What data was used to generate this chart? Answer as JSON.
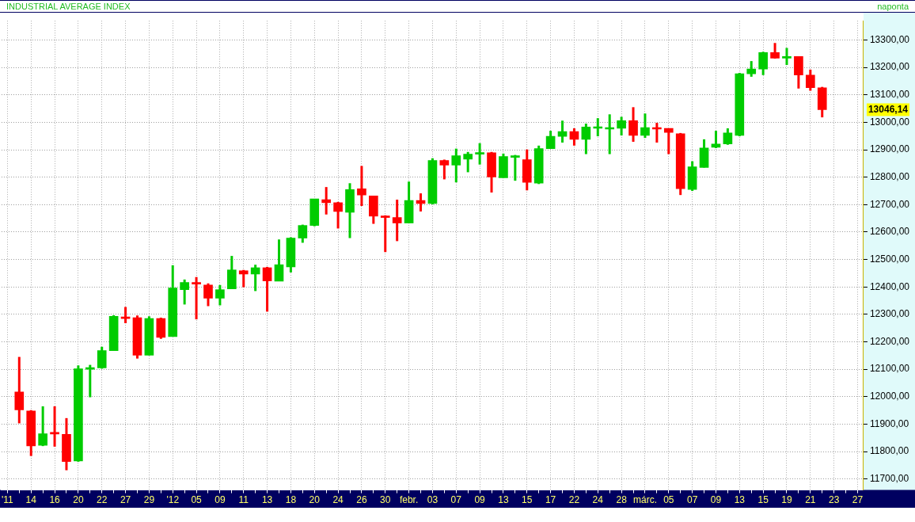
{
  "chart_data": {
    "type": "candlestick",
    "title": "INDUSTRIAL AVERAGE INDEX",
    "subtitle": "naponta",
    "categories": [
      "'11",
      null,
      "14",
      null,
      "16",
      null,
      "20",
      null,
      "22",
      null,
      "27",
      null,
      "29",
      null,
      "'12",
      null,
      "05",
      null,
      "09",
      null,
      "11",
      null,
      "13",
      null,
      "18",
      null,
      "20",
      null,
      "24",
      null,
      "26",
      null,
      "30",
      null,
      "febr.",
      null,
      "03",
      null,
      "07",
      null,
      "09",
      null,
      "13",
      null,
      "15",
      null,
      "17",
      null,
      "22",
      null,
      "24",
      null,
      "28",
      null,
      "márc.",
      null,
      "05",
      null,
      "07",
      null,
      "09",
      null,
      "13",
      null,
      "15",
      null,
      "19",
      null,
      "21",
      null,
      "23",
      null,
      "27"
    ],
    "ohlc": [
      null,
      [
        12017,
        12145,
        11903,
        11952
      ],
      [
        11948,
        11951,
        11784,
        11821
      ],
      [
        11823,
        11965,
        11820,
        11865
      ],
      [
        11868,
        11965,
        11818,
        11864
      ],
      [
        11863,
        11922,
        11732,
        11764
      ],
      [
        11766,
        12114,
        11763,
        12102
      ],
      [
        12100,
        12116,
        11998,
        12106
      ],
      [
        12105,
        12182,
        12102,
        12168
      ],
      [
        12168,
        12297,
        12168,
        12293
      ],
      [
        12291,
        12327,
        12268,
        12285
      ],
      [
        12288,
        12296,
        12139,
        12151
      ],
      [
        12151,
        12293,
        12151,
        12285
      ],
      [
        12285,
        12288,
        12211,
        12216
      ],
      [
        12219,
        12479,
        12219,
        12396
      ],
      [
        12390,
        12427,
        12336,
        12416
      ],
      [
        12416,
        12436,
        12282,
        12410
      ],
      [
        12407,
        12413,
        12330,
        12359
      ],
      [
        12359,
        12407,
        12333,
        12390
      ],
      [
        12393,
        12513,
        12393,
        12462
      ],
      [
        12459,
        12462,
        12399,
        12447
      ],
      [
        12447,
        12481,
        12385,
        12470
      ],
      [
        12470,
        12473,
        12310,
        12422
      ],
      [
        12421,
        12573,
        12421,
        12481
      ],
      [
        12473,
        12581,
        12453,
        12578
      ],
      [
        12578,
        12627,
        12561,
        12624
      ],
      [
        12624,
        12721,
        12621,
        12721
      ],
      [
        12718,
        12764,
        12664,
        12707
      ],
      [
        12707,
        12710,
        12613,
        12675
      ],
      [
        12672,
        12778,
        12578,
        12755
      ],
      [
        12758,
        12841,
        12695,
        12735
      ],
      [
        12732,
        12732,
        12630,
        12658
      ],
      [
        12658,
        12661,
        12527,
        12653
      ],
      [
        12653,
        12718,
        12567,
        12633
      ],
      [
        12633,
        12784,
        12633,
        12715
      ],
      [
        12715,
        12741,
        12675,
        12704
      ],
      [
        12704,
        12869,
        12701,
        12861
      ],
      [
        12861,
        12864,
        12792,
        12844
      ],
      [
        12844,
        12904,
        12781,
        12878
      ],
      [
        12866,
        12892,
        12818,
        12884
      ],
      [
        12884,
        12924,
        12846,
        12889
      ],
      [
        12889,
        12892,
        12744,
        12801
      ],
      [
        12798,
        12886,
        12798,
        12875
      ],
      [
        12872,
        12881,
        12787,
        12878
      ],
      [
        12864,
        12901,
        12752,
        12781
      ],
      [
        12778,
        12915,
        12775,
        12904
      ],
      [
        12904,
        12969,
        12904,
        12949
      ],
      [
        12949,
        13006,
        12926,
        12966
      ],
      [
        12966,
        12978,
        12915,
        12938
      ],
      [
        12938,
        12995,
        12884,
        12983
      ],
      [
        12978,
        13015,
        12949,
        12983
      ],
      [
        12975,
        13029,
        12884,
        12981
      ],
      [
        12978,
        13020,
        12952,
        13006
      ],
      [
        13006,
        13055,
        12929,
        12952
      ],
      [
        12952,
        13032,
        12943,
        12981
      ],
      [
        12981,
        12998,
        12926,
        12975
      ],
      [
        12978,
        12978,
        12884,
        12963
      ],
      [
        12958,
        12961,
        12735,
        12758
      ],
      [
        12755,
        12858,
        12750,
        12838
      ],
      [
        12835,
        12938,
        12835,
        12906
      ],
      [
        12909,
        12969,
        12906,
        12921
      ],
      [
        12921,
        12978,
        12918,
        12961
      ],
      [
        12952,
        13180,
        12949,
        13177
      ],
      [
        13177,
        13223,
        13166,
        13194
      ],
      [
        13194,
        13257,
        13172,
        13254
      ],
      [
        13254,
        13289,
        13232,
        13234
      ],
      [
        13234,
        13271,
        13209,
        13240
      ],
      [
        13240,
        13240,
        13123,
        13172
      ],
      [
        13172,
        13192,
        13115,
        13126
      ],
      [
        13126,
        13129,
        13018,
        13046.14
      ],
      null,
      null,
      null
    ],
    "colors": [
      null,
      "#ff0000",
      "#ff0000",
      "#00cc00",
      "#ff0000",
      "#ff0000",
      "#00cc00",
      "#00cc00",
      "#00cc00",
      "#00cc00",
      "#ff0000",
      "#ff0000",
      "#00cc00",
      "#ff0000",
      "#00cc00",
      "#00cc00",
      "#ff0000",
      "#ff0000",
      "#00cc00",
      "#00cc00",
      "#ff0000",
      "#00cc00",
      "#ff0000",
      "#00cc00",
      "#00cc00",
      "#00cc00",
      "#00cc00",
      "#ff0000",
      "#ff0000",
      "#00cc00",
      "#ff0000",
      "#ff0000",
      "#ff0000",
      "#ff0000",
      "#00cc00",
      "#ff0000",
      "#00cc00",
      "#ff0000",
      "#00cc00",
      "#00cc00",
      "#00cc00",
      "#ff0000",
      "#00cc00",
      "#00cc00",
      "#ff0000",
      "#00cc00",
      "#00cc00",
      "#00cc00",
      "#ff0000",
      "#00cc00",
      "#00cc00",
      "#00cc00",
      "#00cc00",
      "#ff0000",
      "#00cc00",
      "#ff0000",
      "#ff0000",
      "#ff0000",
      "#00cc00",
      "#00cc00",
      "#00cc00",
      "#00cc00",
      "#00cc00",
      "#00cc00",
      "#00cc00",
      "#ff0000",
      "#00cc00",
      "#ff0000",
      "#ff0000",
      "#ff0000",
      null,
      null,
      null
    ],
    "ylim": [
      11660,
      13370
    ],
    "yticks": [
      {
        "value": 11700,
        "label": "11700,00"
      },
      {
        "value": 11800,
        "label": "11800,00"
      },
      {
        "value": 11900,
        "label": "11900,00"
      },
      {
        "value": 12000,
        "label": "12000,00"
      },
      {
        "value": 12100,
        "label": "12100,00"
      },
      {
        "value": 12200,
        "label": "12200,00"
      },
      {
        "value": 12300,
        "label": "12300,00"
      },
      {
        "value": 12400,
        "label": "12400,00"
      },
      {
        "value": 12500,
        "label": "12500,00"
      },
      {
        "value": 12600,
        "label": "12600,00"
      },
      {
        "value": 12700,
        "label": "12700,00"
      },
      {
        "value": 12800,
        "label": "12800,00"
      },
      {
        "value": 12900,
        "label": "12900,00"
      },
      {
        "value": 13000,
        "label": "13000,00"
      },
      {
        "value": 13100,
        "label": "13100,00"
      },
      {
        "value": 13200,
        "label": "13200,00"
      },
      {
        "value": 13300,
        "label": "13300,00"
      }
    ],
    "grid": true,
    "annotations": [
      "13046,14"
    ]
  }
}
